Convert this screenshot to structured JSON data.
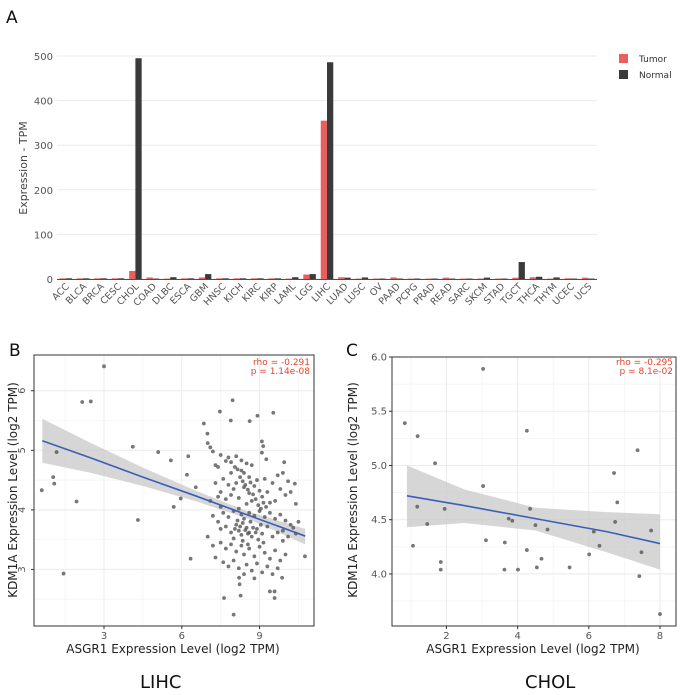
{
  "panels": {
    "A": {
      "letter": "A"
    },
    "B": {
      "letter": "B",
      "caption": "LIHC"
    },
    "C": {
      "letter": "C",
      "caption": "CHOL"
    }
  },
  "colors": {
    "tumor": "#E8605E",
    "normal": "#3A3A3A",
    "grid": "#EBEBEB",
    "point": "#555555",
    "fit_line": "#3A5FB8",
    "ci_band": "#C8C8C8",
    "annotation": "#E0442F",
    "axis_text": "#555555",
    "axis_frame": "#333333"
  },
  "chart_data": [
    {
      "id": "A",
      "type": "bar",
      "title": "",
      "xlabel": "",
      "ylabel": "Expression - TPM",
      "ylim": [
        0,
        500
      ],
      "yticks": [
        0,
        100,
        200,
        300,
        400,
        500
      ],
      "grid": true,
      "legend": {
        "position": "top-right",
        "entries": [
          "Tumor",
          "Normal"
        ]
      },
      "categories": [
        "ACC",
        "BLCA",
        "BRCA",
        "CESC",
        "CHOL",
        "COAD",
        "DLBC",
        "ESCA",
        "GBM",
        "HNSC",
        "KICH",
        "KIRC",
        "KIRP",
        "LAML",
        "LGG",
        "LIHC",
        "LUAD",
        "LUSC",
        "OV",
        "PAAD",
        "PCPG",
        "PRAD",
        "READ",
        "SARC",
        "SKCM",
        "STAD",
        "TGCT",
        "THCA",
        "THYM",
        "UCEC",
        "UCS"
      ],
      "series": [
        {
          "name": "Tumor",
          "values": [
            1.5,
            1.5,
            1.5,
            1.5,
            18,
            3.5,
            1,
            1.5,
            3.5,
            1.5,
            1.5,
            1.5,
            1.5,
            1,
            10,
            355,
            4,
            1,
            1,
            3.5,
            1,
            1,
            3,
            1,
            1,
            1,
            3,
            4,
            1,
            1.5,
            3
          ]
        },
        {
          "name": "Normal",
          "values": [
            1.5,
            1.5,
            1.5,
            1.5,
            495,
            1,
            4,
            1.5,
            11,
            1.5,
            1.5,
            1.5,
            1.5,
            4,
            11,
            486,
            3,
            3.5,
            1,
            1,
            1,
            1,
            1,
            1,
            3,
            1,
            38,
            5,
            3.5,
            1,
            1
          ]
        }
      ]
    },
    {
      "id": "B",
      "type": "scatter",
      "title": "",
      "xlabel": "ASGR1 Expression Level (log2 TPM)",
      "ylabel": "KDM1A Expression Level (log2 TPM)",
      "xlim": [
        0.3,
        11.1
      ],
      "ylim": [
        2.05,
        6.6
      ],
      "xticks": [
        3,
        6,
        9
      ],
      "yticks": [
        3,
        4,
        5,
        6
      ],
      "grid": true,
      "annotation": {
        "rho": "rho = -0.291",
        "p": "p = 1.14e-08",
        "position": "top-right"
      },
      "fit": {
        "x": [
          0.62,
          2.5,
          4.5,
          6.5,
          8.5,
          10.76
        ],
        "y": [
          5.16,
          4.87,
          4.55,
          4.24,
          3.92,
          3.56
        ],
        "ci_upper": [
          5.53,
          5.12,
          4.71,
          4.33,
          3.98,
          3.68
        ],
        "ci_lower": [
          4.79,
          4.62,
          4.4,
          4.15,
          3.86,
          3.42
        ]
      },
      "points": [
        [
          0.6,
          4.33
        ],
        [
          1.04,
          4.55
        ],
        [
          1.08,
          4.44
        ],
        [
          1.17,
          4.97
        ],
        [
          1.44,
          2.93
        ],
        [
          1.94,
          4.14
        ],
        [
          2.16,
          5.81
        ],
        [
          2.49,
          5.82
        ],
        [
          3.0,
          6.41
        ],
        [
          4.11,
          5.06
        ],
        [
          4.31,
          3.83
        ],
        [
          5.09,
          4.97
        ],
        [
          5.58,
          4.83
        ],
        [
          5.69,
          4.05
        ],
        [
          5.96,
          4.19
        ],
        [
          6.2,
          4.59
        ],
        [
          6.25,
          4.9
        ],
        [
          6.54,
          4.38
        ],
        [
          6.34,
          3.18
        ],
        [
          6.85,
          5.45
        ],
        [
          6.99,
          5.28
        ],
        [
          7.47,
          5.65
        ],
        [
          7.96,
          5.84
        ],
        [
          7.89,
          5.5
        ],
        [
          8.62,
          5.49
        ],
        [
          8.92,
          5.58
        ],
        [
          9.53,
          5.63
        ],
        [
          9.09,
          5.15
        ],
        [
          9.14,
          5.07
        ],
        [
          9.26,
          4.85
        ],
        [
          9.09,
          4.96
        ],
        [
          10.75,
          3.22
        ],
        [
          10.36,
          4.44
        ],
        [
          9.95,
          4.8
        ],
        [
          8.0,
          2.24
        ],
        [
          7.63,
          2.52
        ],
        [
          8.27,
          2.56
        ],
        [
          9.4,
          2.63
        ],
        [
          9.58,
          2.63
        ],
        [
          9.58,
          2.52
        ],
        [
          8.21,
          2.86
        ],
        [
          8.23,
          2.75
        ],
        [
          9.87,
          2.86
        ],
        [
          7.0,
          5.12
        ],
        [
          7.1,
          5.05
        ],
        [
          7.2,
          4.98
        ],
        [
          7.3,
          4.75
        ],
        [
          7.4,
          4.72
        ],
        [
          7.5,
          4.92
        ],
        [
          7.7,
          4.82
        ],
        [
          7.8,
          4.88
        ],
        [
          7.9,
          4.8
        ],
        [
          8.1,
          4.9
        ],
        [
          8.3,
          4.83
        ],
        [
          8.5,
          4.78
        ],
        [
          8.7,
          4.75
        ],
        [
          8.3,
          4.66
        ],
        [
          8.4,
          4.62
        ],
        [
          8.6,
          4.55
        ],
        [
          8.9,
          4.5
        ],
        [
          9.2,
          4.52
        ],
        [
          9.5,
          4.45
        ],
        [
          9.7,
          4.58
        ],
        [
          9.9,
          4.62
        ],
        [
          10.1,
          4.48
        ],
        [
          10.2,
          4.3
        ],
        [
          10.4,
          4.1
        ],
        [
          10.0,
          4.25
        ],
        [
          9.8,
          4.35
        ],
        [
          9.6,
          4.15
        ],
        [
          7.6,
          4.52
        ],
        [
          7.8,
          4.42
        ],
        [
          7.5,
          4.3
        ],
        [
          7.4,
          4.22
        ],
        [
          7.7,
          4.18
        ],
        [
          7.9,
          4.25
        ],
        [
          8.0,
          4.35
        ],
        [
          8.1,
          4.45
        ],
        [
          8.2,
          4.2
        ],
        [
          8.4,
          4.38
        ],
        [
          8.6,
          4.28
        ],
        [
          8.8,
          4.4
        ],
        [
          9.0,
          4.32
        ],
        [
          9.1,
          4.22
        ],
        [
          9.3,
          4.3
        ],
        [
          9.4,
          4.12
        ],
        [
          8.5,
          4.1
        ],
        [
          8.7,
          4.15
        ],
        [
          7.5,
          4.05
        ],
        [
          7.6,
          3.95
        ],
        [
          7.8,
          3.88
        ],
        [
          8.0,
          3.98
        ],
        [
          8.2,
          4.02
        ],
        [
          8.3,
          3.92
        ],
        [
          8.4,
          3.85
        ],
        [
          8.6,
          3.95
        ],
        [
          8.8,
          3.9
        ],
        [
          9.0,
          3.98
        ],
        [
          9.2,
          3.88
        ],
        [
          9.4,
          3.95
        ],
        [
          9.6,
          3.85
        ],
        [
          9.8,
          3.92
        ],
        [
          10.0,
          3.82
        ],
        [
          10.2,
          3.75
        ],
        [
          10.3,
          3.7
        ],
        [
          9.9,
          3.65
        ],
        [
          7.4,
          3.8
        ],
        [
          7.5,
          3.68
        ],
        [
          7.7,
          3.72
        ],
        [
          7.9,
          3.62
        ],
        [
          8.1,
          3.75
        ],
        [
          8.2,
          3.65
        ],
        [
          8.3,
          3.58
        ],
        [
          8.5,
          3.7
        ],
        [
          8.6,
          3.62
        ],
        [
          8.7,
          3.55
        ],
        [
          8.9,
          3.68
        ],
        [
          9.1,
          3.6
        ],
        [
          9.3,
          3.72
        ],
        [
          9.5,
          3.55
        ],
        [
          9.7,
          3.62
        ],
        [
          9.9,
          3.48
        ],
        [
          10.1,
          3.55
        ],
        [
          8.0,
          3.52
        ],
        [
          7.5,
          3.45
        ],
        [
          7.7,
          3.35
        ],
        [
          7.9,
          3.42
        ],
        [
          8.1,
          3.3
        ],
        [
          8.3,
          3.4
        ],
        [
          8.4,
          3.25
        ],
        [
          8.6,
          3.35
        ],
        [
          8.8,
          3.22
        ],
        [
          9.0,
          3.38
        ],
        [
          9.2,
          3.28
        ],
        [
          9.4,
          3.18
        ],
        [
          9.6,
          3.32
        ],
        [
          9.8,
          3.15
        ],
        [
          10.0,
          3.25
        ],
        [
          7.3,
          3.2
        ],
        [
          7.6,
          3.12
        ],
        [
          7.8,
          3.05
        ],
        [
          8.0,
          3.15
        ],
        [
          8.2,
          3.02
        ],
        [
          8.5,
          3.08
        ],
        [
          8.7,
          2.98
        ],
        [
          8.9,
          3.1
        ],
        [
          9.1,
          2.95
        ],
        [
          9.3,
          3.05
        ],
        [
          9.5,
          2.92
        ],
        [
          9.7,
          3.02
        ],
        [
          8.4,
          2.92
        ],
        [
          8.8,
          2.85
        ],
        [
          7.2,
          3.4
        ],
        [
          7.0,
          3.55
        ],
        [
          7.2,
          3.9
        ],
        [
          7.1,
          4.15
        ],
        [
          7.3,
          4.45
        ],
        [
          10.4,
          3.6
        ],
        [
          10.5,
          3.8
        ],
        [
          7.9,
          4.62
        ],
        [
          8.05,
          4.72
        ],
        [
          8.15,
          4.68
        ],
        [
          8.25,
          4.55
        ],
        [
          8.35,
          4.48
        ],
        [
          8.45,
          4.42
        ],
        [
          8.55,
          4.34
        ],
        [
          8.65,
          4.46
        ],
        [
          8.75,
          4.26
        ],
        [
          8.85,
          4.18
        ],
        [
          8.95,
          4.08
        ],
        [
          9.05,
          4.02
        ],
        [
          9.15,
          4.12
        ],
        [
          9.25,
          4.05
        ],
        [
          8.15,
          3.82
        ],
        [
          8.25,
          3.72
        ],
        [
          8.35,
          3.78
        ],
        [
          8.45,
          3.66
        ],
        [
          8.55,
          3.6
        ],
        [
          8.65,
          3.8
        ],
        [
          8.75,
          3.7
        ],
        [
          8.85,
          3.62
        ],
        [
          8.95,
          3.5
        ],
        [
          9.05,
          3.75
        ],
        [
          9.15,
          3.45
        ],
        [
          8.05,
          3.68
        ],
        [
          8.35,
          3.48
        ],
        [
          8.55,
          3.42
        ]
      ]
    },
    {
      "id": "C",
      "type": "scatter",
      "title": "",
      "xlabel": "ASGR1 Expression Level (log2 TPM)",
      "ylabel": "KDM1A Expression Level (log2 TPM)",
      "xlim": [
        0.47,
        8.45
      ],
      "ylim": [
        3.52,
        6.0
      ],
      "xticks": [
        2,
        4,
        6,
        8
      ],
      "yticks": [
        4.0,
        4.5,
        5.0,
        5.5,
        6.0
      ],
      "ytick_labels": [
        "4.0",
        "4.5",
        "5.0",
        "5.5",
        "6.0"
      ],
      "grid": true,
      "annotation": {
        "rho": "rho = -0.295",
        "p": "p = 8.1e-02",
        "position": "top-right"
      },
      "fit": {
        "x": [
          0.89,
          2.5,
          4.5,
          6.5,
          8.0
        ],
        "y": [
          4.72,
          4.63,
          4.51,
          4.39,
          4.28
        ],
        "ci_upper": [
          5.0,
          4.78,
          4.61,
          4.57,
          4.55
        ],
        "ci_lower": [
          4.43,
          4.47,
          4.4,
          4.2,
          4.04
        ]
      },
      "points": [
        [
          0.83,
          5.39
        ],
        [
          1.19,
          5.27
        ],
        [
          1.68,
          5.02
        ],
        [
          3.03,
          5.89
        ],
        [
          3.03,
          4.81
        ],
        [
          1.18,
          4.62
        ],
        [
          1.95,
          4.6
        ],
        [
          1.46,
          4.46
        ],
        [
          1.06,
          4.26
        ],
        [
          1.84,
          4.11
        ],
        [
          1.84,
          4.04
        ],
        [
          3.11,
          4.31
        ],
        [
          3.64,
          4.29
        ],
        [
          3.75,
          4.51
        ],
        [
          3.85,
          4.49
        ],
        [
          3.63,
          4.04
        ],
        [
          4.01,
          4.04
        ],
        [
          4.26,
          5.32
        ],
        [
          4.35,
          4.6
        ],
        [
          4.5,
          4.45
        ],
        [
          4.84,
          4.41
        ],
        [
          4.26,
          4.22
        ],
        [
          4.67,
          4.14
        ],
        [
          4.54,
          4.06
        ],
        [
          5.46,
          4.06
        ],
        [
          6.01,
          4.18
        ],
        [
          6.14,
          4.39
        ],
        [
          6.3,
          4.26
        ],
        [
          6.71,
          4.93
        ],
        [
          6.8,
          4.66
        ],
        [
          6.74,
          4.48
        ],
        [
          7.37,
          5.14
        ],
        [
          7.75,
          4.4
        ],
        [
          7.48,
          4.2
        ],
        [
          7.42,
          3.98
        ],
        [
          8.0,
          3.63
        ]
      ]
    }
  ]
}
